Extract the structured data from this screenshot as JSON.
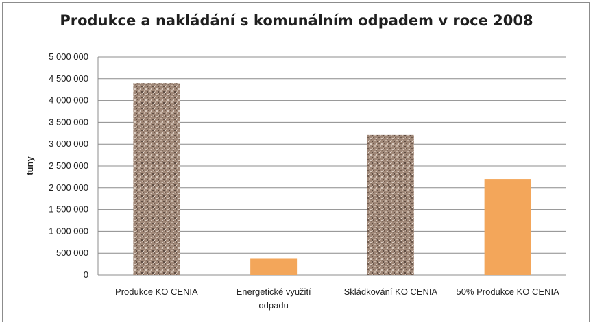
{
  "chart_data": {
    "type": "bar",
    "title": "Produkce a nakládání s komunálním odpadem v roce 2008",
    "ylabel": "tuny",
    "xlabel": "",
    "ylim": [
      0,
      5000000
    ],
    "yticks": [
      0,
      500000,
      1000000,
      1500000,
      2000000,
      2500000,
      3000000,
      3500000,
      4000000,
      4500000,
      5000000
    ],
    "ytick_labels": [
      "0",
      "500 000",
      "1 000 000",
      "1 500 000",
      "2 000 000",
      "2 500 000",
      "3 000 000",
      "3 500 000",
      "4 000 000",
      "4 500 000",
      "5 000 000"
    ],
    "grid": true,
    "categories": [
      [
        "Produkce KO CENIA"
      ],
      [
        "Energetické využití",
        "odpadu"
      ],
      [
        "Skládkování KO CENIA"
      ],
      [
        "50% Produkce  KO CENIA"
      ]
    ],
    "values": [
      4400000,
      370000,
      3210000,
      2200000
    ],
    "bar_styles": [
      "granite",
      "orange",
      "granite",
      "orange"
    ],
    "colors": {
      "orange": "#f3a65a",
      "granite_base": "#a08878",
      "gridline": "#8c8c8c"
    }
  }
}
